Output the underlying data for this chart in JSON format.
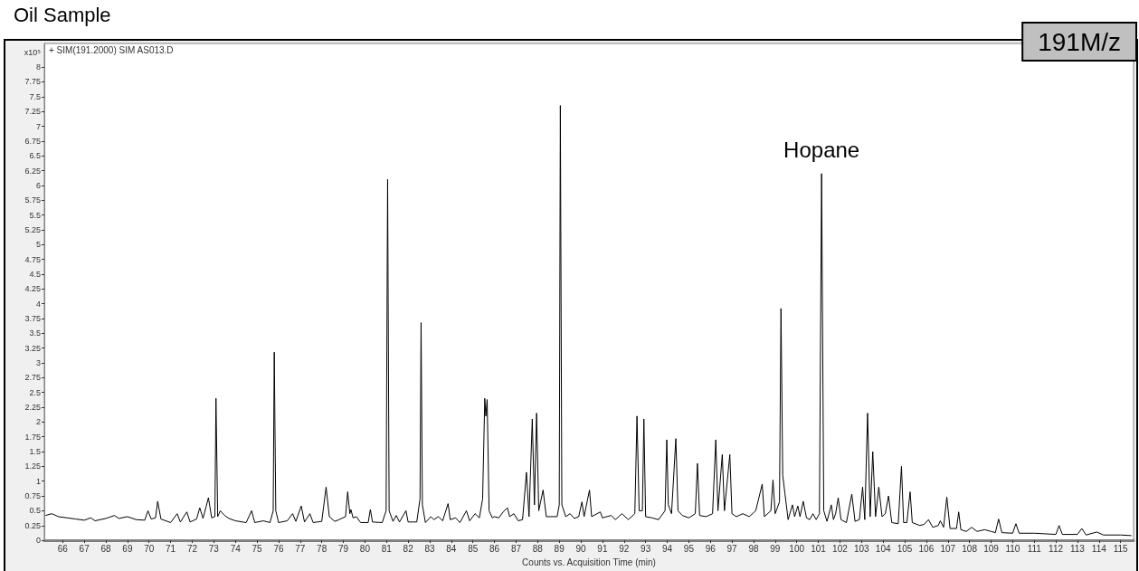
{
  "chart_data": {
    "type": "line",
    "title": "Oil Sample",
    "xlabel": "Counts vs. Acquisition Time (min)",
    "ylabel": "x10⁵",
    "annotations": [
      "+ SIM(191.2000) SIM AS013.D",
      "191M/z",
      {
        "text": "Hopane",
        "x": 101.15,
        "y": 6.2
      }
    ],
    "xlim": [
      65.15,
      115.6
    ],
    "ylim": [
      0,
      8.4
    ],
    "xticks": [
      66,
      67,
      68,
      69,
      70,
      71,
      72,
      73,
      74,
      75,
      76,
      77,
      78,
      79,
      80,
      81,
      82,
      83,
      84,
      85,
      86,
      87,
      88,
      89,
      90,
      91,
      92,
      93,
      94,
      95,
      96,
      97,
      98,
      99,
      100,
      101,
      102,
      103,
      104,
      105,
      106,
      107,
      108,
      109,
      110,
      111,
      112,
      113,
      114,
      115
    ],
    "yticks": [
      0,
      0.25,
      0.5,
      0.75,
      1,
      1.25,
      1.5,
      1.75,
      2,
      2.25,
      2.5,
      2.75,
      3,
      3.25,
      3.5,
      3.75,
      4,
      4.25,
      4.5,
      4.75,
      5,
      5.25,
      5.5,
      5.75,
      6,
      6.25,
      6.5,
      6.75,
      7,
      7.25,
      7.5,
      7.75,
      8
    ],
    "grid": false,
    "series": [
      {
        "color": "#000000",
        "x": [
          65.2,
          65.5,
          65.8,
          66.2,
          66.6,
          67.0,
          67.3,
          67.5,
          68.0,
          68.4,
          68.6,
          69.0,
          69.4,
          69.8,
          69.95,
          70.1,
          70.3,
          70.4,
          70.55,
          71.0,
          71.3,
          71.45,
          71.75,
          71.9,
          72.2,
          72.35,
          72.5,
          72.75,
          72.9,
          73.05,
          73.1,
          73.18,
          73.3,
          73.5,
          73.7,
          74.0,
          74.5,
          74.75,
          74.9,
          75.3,
          75.6,
          75.75,
          75.8,
          75.87,
          76.0,
          76.4,
          76.65,
          76.8,
          77.05,
          77.2,
          77.45,
          77.6,
          78.0,
          78.2,
          78.35,
          78.6,
          78.8,
          79.1,
          79.2,
          79.3,
          79.35,
          79.45,
          79.6,
          79.8,
          80.15,
          80.25,
          80.35,
          80.8,
          80.98,
          81.05,
          81.12,
          81.3,
          81.45,
          81.6,
          81.9,
          82.0,
          82.4,
          82.55,
          82.6,
          82.66,
          82.8,
          83.05,
          83.2,
          83.4,
          83.6,
          83.85,
          83.95,
          84.2,
          84.4,
          84.7,
          84.85,
          85.1,
          85.3,
          85.45,
          85.55,
          85.6,
          85.66,
          85.75,
          85.9,
          86.0,
          86.2,
          86.4,
          86.6,
          86.7,
          86.9,
          87.1,
          87.3,
          87.48,
          87.6,
          87.75,
          87.85,
          87.95,
          88.05,
          88.25,
          88.4,
          88.6,
          88.9,
          89.0,
          89.05,
          89.12,
          89.3,
          89.5,
          89.7,
          89.9,
          90.05,
          90.15,
          90.4,
          90.5,
          90.9,
          91.0,
          91.4,
          91.6,
          91.9,
          92.2,
          92.5,
          92.6,
          92.7,
          92.85,
          92.92,
          93.0,
          93.3,
          93.6,
          93.9,
          93.98,
          94.05,
          94.2,
          94.4,
          94.5,
          94.7,
          95.0,
          95.3,
          95.4,
          95.5,
          95.8,
          96.1,
          96.25,
          96.35,
          96.55,
          96.65,
          96.9,
          97.0,
          97.2,
          97.5,
          97.8,
          98.1,
          98.4,
          98.5,
          98.8,
          98.9,
          99.0,
          99.2,
          99.27,
          99.35,
          99.45,
          99.6,
          99.8,
          99.9,
          100.05,
          100.15,
          100.3,
          100.45,
          100.6,
          100.75,
          100.9,
          101.05,
          101.15,
          101.25,
          101.4,
          101.6,
          101.7,
          101.8,
          101.92,
          102.05,
          102.3,
          102.55,
          102.7,
          102.9,
          103.05,
          103.15,
          103.28,
          103.4,
          103.52,
          103.65,
          103.8,
          103.95,
          104.1,
          104.25,
          104.4,
          104.7,
          104.85,
          104.95,
          105.1,
          105.25,
          105.35,
          105.7,
          105.9,
          106.1,
          106.3,
          106.55,
          106.65,
          106.8,
          106.95,
          107.1,
          107.4,
          107.5,
          107.6,
          107.85,
          108.1,
          108.35,
          108.7,
          109.0,
          109.2,
          109.35,
          109.5,
          110.0,
          110.15,
          110.3,
          111.0,
          111.5,
          112.0,
          112.15,
          112.3,
          113.0,
          113.2,
          113.4,
          113.9,
          114.2,
          115.0,
          115.5
        ],
        "values": [
          0.42,
          0.45,
          0.4,
          0.38,
          0.36,
          0.34,
          0.38,
          0.33,
          0.37,
          0.42,
          0.37,
          0.4,
          0.35,
          0.34,
          0.5,
          0.36,
          0.38,
          0.66,
          0.36,
          0.3,
          0.45,
          0.31,
          0.48,
          0.31,
          0.36,
          0.55,
          0.37,
          0.72,
          0.38,
          0.4,
          2.4,
          0.4,
          0.5,
          0.42,
          0.37,
          0.33,
          0.3,
          0.5,
          0.3,
          0.33,
          0.3,
          0.5,
          3.18,
          0.5,
          0.3,
          0.33,
          0.45,
          0.32,
          0.58,
          0.31,
          0.45,
          0.3,
          0.32,
          0.9,
          0.4,
          0.32,
          0.35,
          0.4,
          0.82,
          0.45,
          0.52,
          0.38,
          0.4,
          0.3,
          0.3,
          0.52,
          0.31,
          0.3,
          0.5,
          6.1,
          0.5,
          0.32,
          0.42,
          0.31,
          0.5,
          0.31,
          0.31,
          0.7,
          3.68,
          0.6,
          0.3,
          0.4,
          0.35,
          0.4,
          0.33,
          0.62,
          0.35,
          0.38,
          0.3,
          0.5,
          0.33,
          0.45,
          0.38,
          0.7,
          2.4,
          2.1,
          2.38,
          0.5,
          0.38,
          0.4,
          0.38,
          0.48,
          0.55,
          0.4,
          0.45,
          0.33,
          0.35,
          1.15,
          0.4,
          2.05,
          0.6,
          2.15,
          0.5,
          0.85,
          0.4,
          0.4,
          0.4,
          0.6,
          7.35,
          0.6,
          0.4,
          0.45,
          0.37,
          0.4,
          0.65,
          0.4,
          0.85,
          0.4,
          0.48,
          0.38,
          0.42,
          0.35,
          0.45,
          0.35,
          0.45,
          2.1,
          0.5,
          0.5,
          2.05,
          0.4,
          0.38,
          0.35,
          0.5,
          1.7,
          0.6,
          0.45,
          1.72,
          0.5,
          0.42,
          0.38,
          0.45,
          1.3,
          0.42,
          0.4,
          0.45,
          1.7,
          0.5,
          1.45,
          0.5,
          1.45,
          0.45,
          0.4,
          0.45,
          0.4,
          0.5,
          0.95,
          0.4,
          0.5,
          1.02,
          0.45,
          0.65,
          3.92,
          1.1,
          0.8,
          0.35,
          0.6,
          0.4,
          0.58,
          0.4,
          0.66,
          0.38,
          0.35,
          0.45,
          0.35,
          0.45,
          6.2,
          0.5,
          0.32,
          0.6,
          0.35,
          0.45,
          0.72,
          0.35,
          0.3,
          0.78,
          0.32,
          0.35,
          0.9,
          0.35,
          2.15,
          0.4,
          1.5,
          0.4,
          0.9,
          0.4,
          0.45,
          0.75,
          0.3,
          0.28,
          1.25,
          0.3,
          0.3,
          0.82,
          0.3,
          0.25,
          0.27,
          0.35,
          0.22,
          0.25,
          0.33,
          0.22,
          0.73,
          0.2,
          0.2,
          0.48,
          0.18,
          0.15,
          0.22,
          0.15,
          0.18,
          0.15,
          0.13,
          0.36,
          0.13,
          0.12,
          0.28,
          0.12,
          0.12,
          0.11,
          0.1,
          0.25,
          0.1,
          0.1,
          0.2,
          0.09,
          0.14,
          0.09,
          0.09,
          0.08
        ]
      }
    ]
  }
}
